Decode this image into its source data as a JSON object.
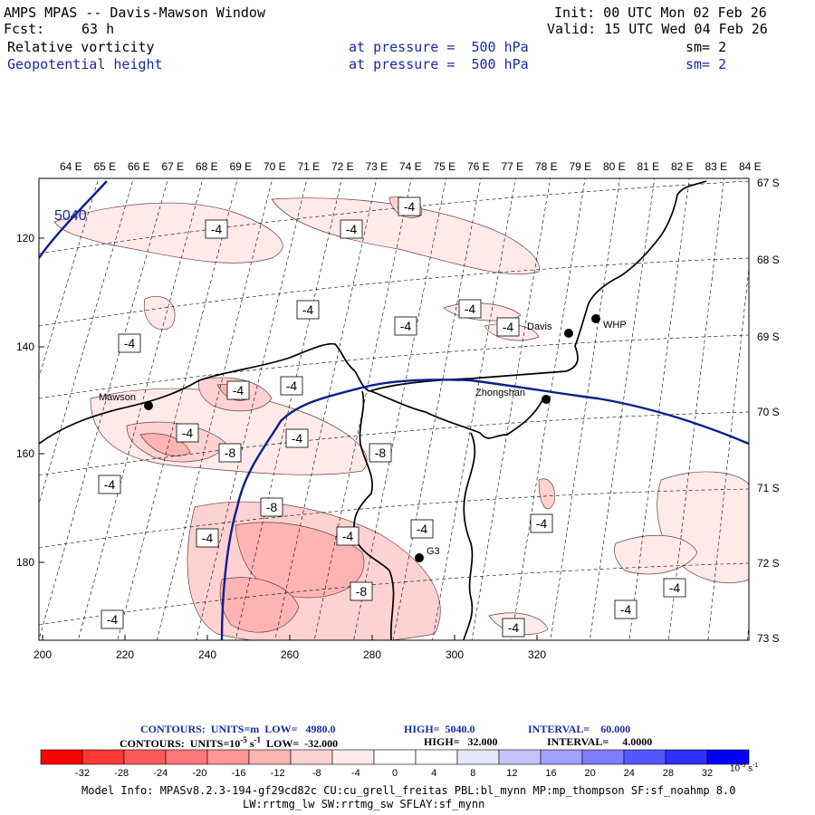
{
  "header": {
    "title": "AMPS MPAS -- Davis-Mawson Window",
    "fcst_label": "Fcst:",
    "fcst_value": "63 h",
    "init": "Init: 00 UTC Mon 02 Feb 26",
    "valid": "Valid: 15 UTC Wed 04 Feb 26",
    "field1_name": "Relative vorticity",
    "field1_level": "at pressure =  500 hPa",
    "field1_sm": "sm= 2",
    "field2_name": "Geopotential height",
    "field2_level": "at pressure =  500 hPa",
    "field2_sm": "sm= 2"
  },
  "map": {
    "lon_labels": [
      "64 E",
      "65 E",
      "66 E",
      "67 E",
      "68 E",
      "69 E",
      "70 E",
      "71 E",
      "72 E",
      "73 E",
      "74 E",
      "75 E",
      "76 E",
      "77 E",
      "78 E",
      "79 E",
      "80 E",
      "81 E",
      "82 E",
      "83 E",
      "84 E"
    ],
    "lat_labels": [
      "67 S",
      "68 S",
      "69 S",
      "70 S",
      "71 S",
      "72 S",
      "73 S"
    ],
    "x_ticks": [
      "200",
      "220",
      "240",
      "260",
      "280",
      "300",
      "320"
    ],
    "y_ticks": [
      "120",
      "140",
      "160",
      "180"
    ],
    "height_contour_label": "5040",
    "stations": [
      {
        "name": "Mawson"
      },
      {
        "name": "Davis"
      },
      {
        "name": "WHP"
      },
      {
        "name": "Zhongshan"
      },
      {
        "name": "G3"
      }
    ],
    "vort_labels": [
      "-4",
      "-4",
      "-4",
      "-4",
      "-4",
      "-4",
      "-4",
      "-4",
      "-4",
      "-4",
      "-4",
      "-4",
      "-4",
      "-4",
      "-4",
      "-4",
      "-4",
      "-4",
      "-4",
      "-4",
      "-4",
      "-8",
      "-8",
      "-8",
      "-8"
    ]
  },
  "contour_info": {
    "line1_left": "CONTOURS:  UNITS=m  LOW=   4980.0",
    "line1_high": "HIGH=  5040.0",
    "line1_int": "INTERVAL=    60.000",
    "line2_left": "CONTOURS:  UNITS=10",
    "line2_exp": "-5",
    "line2_unit": " s",
    "line2_unit_exp": "-1",
    "line2_low": "  LOW=  -32.000",
    "line2_high": "HIGH=   32.000",
    "line2_int": "INTERVAL=     4.0000"
  },
  "colorbar": {
    "colors": [
      "#ff0000",
      "#ff3838",
      "#ff5a5a",
      "#ff7878",
      "#ff9696",
      "#ffb4b4",
      "#ffd2d2",
      "#ffeaea",
      "#ffffff",
      "#ffffff",
      "#e6e6ff",
      "#c4c4ff",
      "#a0a0ff",
      "#7c7cff",
      "#5656ff",
      "#2e2eff",
      "#0000ff"
    ],
    "tick_labels": [
      "-32",
      "-28",
      "-24",
      "-20",
      "-16",
      "-12",
      "-8",
      "-4",
      "0",
      "4",
      "8",
      "12",
      "16",
      "20",
      "24",
      "28",
      "32"
    ],
    "units_label": "10",
    "units_exp1": "-5",
    "units_s": " s",
    "units_exp2": "-1"
  },
  "footer": {
    "line1": "Model Info: MPASv8.2.3-194-gf29cd82c CU:cu_grell_freitas PBL:bl_mynn MP:mp_thompson SF:sf_noahmp 8.0",
    "line2": "LW:rrtmg_lw SW:rrtmg_sw SFLAY:sf_mynn"
  },
  "colors": {
    "height_contour": "#0b1f8c",
    "coast": "#000000",
    "label_blue": "#1b2a9c"
  }
}
